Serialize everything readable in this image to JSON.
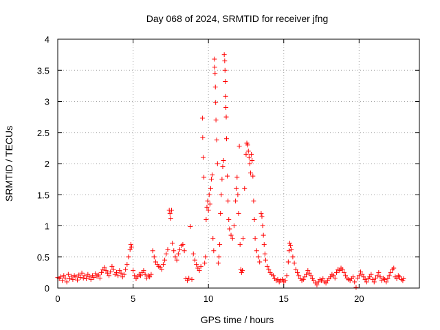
{
  "chart_data": {
    "type": "scatter",
    "title": "Day 068 of 2024, SRMTID for receiver jfng",
    "xlabel": "GPS time / hours",
    "ylabel": "SRMTID / TECUs",
    "xlim": [
      0,
      24
    ],
    "ylim": [
      0,
      4
    ],
    "x_ticks": [
      0,
      5,
      10,
      15,
      20
    ],
    "x_tick_labels": [
      "0",
      "5",
      "10",
      "15",
      "20"
    ],
    "y_ticks": [
      0,
      0.5,
      1,
      1.5,
      2,
      2.5,
      3,
      3.5,
      4
    ],
    "y_tick_labels": [
      "0",
      "0.5",
      "1",
      "1.5",
      "2",
      "2.5",
      "3",
      "3.5",
      "4"
    ],
    "grid": true,
    "marker": "+",
    "series": [
      {
        "name": "SRMTID",
        "color": "#ff0000",
        "points": [
          [
            0.0,
            0.17
          ],
          [
            0.1,
            0.15
          ],
          [
            0.2,
            0.18
          ],
          [
            0.3,
            0.12
          ],
          [
            0.4,
            0.2
          ],
          [
            0.5,
            0.16
          ],
          [
            0.6,
            0.1
          ],
          [
            0.7,
            0.22
          ],
          [
            0.8,
            0.15
          ],
          [
            0.9,
            0.19
          ],
          [
            1.0,
            0.14
          ],
          [
            1.1,
            0.2
          ],
          [
            1.2,
            0.18
          ],
          [
            1.3,
            0.13
          ],
          [
            1.4,
            0.21
          ],
          [
            1.5,
            0.17
          ],
          [
            1.6,
            0.24
          ],
          [
            1.7,
            0.16
          ],
          [
            1.8,
            0.2
          ],
          [
            1.9,
            0.15
          ],
          [
            2.0,
            0.22
          ],
          [
            2.1,
            0.18
          ],
          [
            2.2,
            0.14
          ],
          [
            2.3,
            0.2
          ],
          [
            2.4,
            0.17
          ],
          [
            2.5,
            0.23
          ],
          [
            2.6,
            0.19
          ],
          [
            2.7,
            0.21
          ],
          [
            2.8,
            0.16
          ],
          [
            2.9,
            0.25
          ],
          [
            3.0,
            0.3
          ],
          [
            3.1,
            0.33
          ],
          [
            3.2,
            0.28
          ],
          [
            3.3,
            0.24
          ],
          [
            3.4,
            0.2
          ],
          [
            3.5,
            0.26
          ],
          [
            3.6,
            0.35
          ],
          [
            3.7,
            0.3
          ],
          [
            3.8,
            0.22
          ],
          [
            3.9,
            0.25
          ],
          [
            4.0,
            0.2
          ],
          [
            4.1,
            0.28
          ],
          [
            4.2,
            0.24
          ],
          [
            4.3,
            0.18
          ],
          [
            4.4,
            0.22
          ],
          [
            4.5,
            0.3
          ],
          [
            4.6,
            0.38
          ],
          [
            4.7,
            0.5
          ],
          [
            4.8,
            0.62
          ],
          [
            4.85,
            0.7
          ],
          [
            4.9,
            0.66
          ],
          [
            5.0,
            0.28
          ],
          [
            5.1,
            0.2
          ],
          [
            5.2,
            0.15
          ],
          [
            5.3,
            0.18
          ],
          [
            5.4,
            0.22
          ],
          [
            5.5,
            0.2
          ],
          [
            5.6,
            0.25
          ],
          [
            5.7,
            0.28
          ],
          [
            5.8,
            0.22
          ],
          [
            5.9,
            0.16
          ],
          [
            6.0,
            0.2
          ],
          [
            6.1,
            0.18
          ],
          [
            6.2,
            0.22
          ],
          [
            6.3,
            0.6
          ],
          [
            6.4,
            0.5
          ],
          [
            6.5,
            0.42
          ],
          [
            6.6,
            0.38
          ],
          [
            6.7,
            0.35
          ],
          [
            6.8,
            0.33
          ],
          [
            6.9,
            0.3
          ],
          [
            7.0,
            0.38
          ],
          [
            7.1,
            0.45
          ],
          [
            7.2,
            0.55
          ],
          [
            7.3,
            0.62
          ],
          [
            7.4,
            1.25
          ],
          [
            7.45,
            1.2
          ],
          [
            7.5,
            1.12
          ],
          [
            7.55,
            1.25
          ],
          [
            7.6,
            0.72
          ],
          [
            7.7,
            0.6
          ],
          [
            7.8,
            0.5
          ],
          [
            7.9,
            0.45
          ],
          [
            8.0,
            0.55
          ],
          [
            8.1,
            0.62
          ],
          [
            8.2,
            0.68
          ],
          [
            8.3,
            0.7
          ],
          [
            8.4,
            0.6
          ],
          [
            8.5,
            0.15
          ],
          [
            8.6,
            0.12
          ],
          [
            8.7,
            0.16
          ],
          [
            8.8,
            0.99
          ],
          [
            8.9,
            0.14
          ],
          [
            9.0,
            0.55
          ],
          [
            9.1,
            0.45
          ],
          [
            9.2,
            0.38
          ],
          [
            9.3,
            0.32
          ],
          [
            9.4,
            0.28
          ],
          [
            9.5,
            0.35
          ],
          [
            9.6,
            2.73
          ],
          [
            9.62,
            2.42
          ],
          [
            9.65,
            2.1
          ],
          [
            9.7,
            1.78
          ],
          [
            9.75,
            0.4
          ],
          [
            9.8,
            0.5
          ],
          [
            9.85,
            1.1
          ],
          [
            9.9,
            1.3
          ],
          [
            9.95,
            1.4
          ],
          [
            10.0,
            1.25
          ],
          [
            10.05,
            1.5
          ],
          [
            10.1,
            1.35
          ],
          [
            10.15,
            1.6
          ],
          [
            10.2,
            1.75
          ],
          [
            10.25,
            1.82
          ],
          [
            10.3,
            0.8
          ],
          [
            10.35,
            0.6
          ],
          [
            10.4,
            3.68
          ],
          [
            10.42,
            3.55
          ],
          [
            10.44,
            3.45
          ],
          [
            10.46,
            3.23
          ],
          [
            10.48,
            2.98
          ],
          [
            10.5,
            2.7
          ],
          [
            10.55,
            2.38
          ],
          [
            10.6,
            2.0
          ],
          [
            10.65,
            0.4
          ],
          [
            10.7,
            0.5
          ],
          [
            10.75,
            0.7
          ],
          [
            10.8,
            1.2
          ],
          [
            10.85,
            1.5
          ],
          [
            10.9,
            1.75
          ],
          [
            10.95,
            1.95
          ],
          [
            11.0,
            2.05
          ],
          [
            11.05,
            3.75
          ],
          [
            11.08,
            3.65
          ],
          [
            11.1,
            3.5
          ],
          [
            11.12,
            3.32
          ],
          [
            11.14,
            3.08
          ],
          [
            11.16,
            2.9
          ],
          [
            11.18,
            2.75
          ],
          [
            11.2,
            2.4
          ],
          [
            11.25,
            1.8
          ],
          [
            11.3,
            1.4
          ],
          [
            11.35,
            1.1
          ],
          [
            11.4,
            0.95
          ],
          [
            11.5,
            0.85
          ],
          [
            11.6,
            0.8
          ],
          [
            11.7,
            1.0
          ],
          [
            11.8,
            1.4
          ],
          [
            11.85,
            1.6
          ],
          [
            11.9,
            1.78
          ],
          [
            11.95,
            1.5
          ],
          [
            12.0,
            1.2
          ],
          [
            12.05,
            2.28
          ],
          [
            12.1,
            0.7
          ],
          [
            12.15,
            0.3
          ],
          [
            12.2,
            0.25
          ],
          [
            12.25,
            0.28
          ],
          [
            12.3,
            0.8
          ],
          [
            12.4,
            1.6
          ],
          [
            12.5,
            2.15
          ],
          [
            12.55,
            2.33
          ],
          [
            12.6,
            2.3
          ],
          [
            12.65,
            2.2
          ],
          [
            12.7,
            2.1
          ],
          [
            12.75,
            2.0
          ],
          [
            12.8,
            1.85
          ],
          [
            12.85,
            2.15
          ],
          [
            12.9,
            2.05
          ],
          [
            12.95,
            1.8
          ],
          [
            13.0,
            1.4
          ],
          [
            13.05,
            1.1
          ],
          [
            13.1,
            0.8
          ],
          [
            13.2,
            0.6
          ],
          [
            13.3,
            0.5
          ],
          [
            13.4,
            0.42
          ],
          [
            13.5,
            1.2
          ],
          [
            13.55,
            1.15
          ],
          [
            13.6,
            1.0
          ],
          [
            13.65,
            0.85
          ],
          [
            13.7,
            0.7
          ],
          [
            13.75,
            0.55
          ],
          [
            13.8,
            0.45
          ],
          [
            13.9,
            0.35
          ],
          [
            14.0,
            0.3
          ],
          [
            14.1,
            0.25
          ],
          [
            14.2,
            0.22
          ],
          [
            14.3,
            0.2
          ],
          [
            14.4,
            0.15
          ],
          [
            14.5,
            0.12
          ],
          [
            14.6,
            0.14
          ],
          [
            14.7,
            0.1
          ],
          [
            14.8,
            0.12
          ],
          [
            14.9,
            0.14
          ],
          [
            15.0,
            0.1
          ],
          [
            15.1,
            0.12
          ],
          [
            15.2,
            0.2
          ],
          [
            15.3,
            0.42
          ],
          [
            15.35,
            0.6
          ],
          [
            15.4,
            0.72
          ],
          [
            15.45,
            0.68
          ],
          [
            15.5,
            0.62
          ],
          [
            15.6,
            0.5
          ],
          [
            15.7,
            0.4
          ],
          [
            15.8,
            0.3
          ],
          [
            15.9,
            0.25
          ],
          [
            16.0,
            0.2
          ],
          [
            16.1,
            0.15
          ],
          [
            16.2,
            0.12
          ],
          [
            16.3,
            0.14
          ],
          [
            16.4,
            0.18
          ],
          [
            16.5,
            0.22
          ],
          [
            16.6,
            0.28
          ],
          [
            16.7,
            0.24
          ],
          [
            16.8,
            0.2
          ],
          [
            16.9,
            0.15
          ],
          [
            17.0,
            0.12
          ],
          [
            17.1,
            0.08
          ],
          [
            17.2,
            0.05
          ],
          [
            17.3,
            0.1
          ],
          [
            17.4,
            0.14
          ],
          [
            17.5,
            0.12
          ],
          [
            17.6,
            0.15
          ],
          [
            17.7,
            0.1
          ],
          [
            17.8,
            0.08
          ],
          [
            17.9,
            0.12
          ],
          [
            18.0,
            0.15
          ],
          [
            18.1,
            0.18
          ],
          [
            18.2,
            0.22
          ],
          [
            18.3,
            0.2
          ],
          [
            18.4,
            0.16
          ],
          [
            18.5,
            0.25
          ],
          [
            18.6,
            0.3
          ],
          [
            18.7,
            0.28
          ],
          [
            18.8,
            0.32
          ],
          [
            18.9,
            0.3
          ],
          [
            19.0,
            0.25
          ],
          [
            19.1,
            0.2
          ],
          [
            19.2,
            0.16
          ],
          [
            19.3,
            0.14
          ],
          [
            19.4,
            0.12
          ],
          [
            19.5,
            0.15
          ],
          [
            19.6,
            0.18
          ],
          [
            19.7,
            0.1
          ],
          [
            19.8,
            0.01
          ],
          [
            19.9,
            0.16
          ],
          [
            20.0,
            0.2
          ],
          [
            20.1,
            0.26
          ],
          [
            20.2,
            0.22
          ],
          [
            20.3,
            0.18
          ],
          [
            20.4,
            0.14
          ],
          [
            20.5,
            0.1
          ],
          [
            20.6,
            0.15
          ],
          [
            20.7,
            0.18
          ],
          [
            20.8,
            0.22
          ],
          [
            20.9,
            0.14
          ],
          [
            21.0,
            0.1
          ],
          [
            21.1,
            0.16
          ],
          [
            21.2,
            0.2
          ],
          [
            21.3,
            0.25
          ],
          [
            21.4,
            0.18
          ],
          [
            21.5,
            0.12
          ],
          [
            21.6,
            0.16
          ],
          [
            21.7,
            0.14
          ],
          [
            21.8,
            0.1
          ],
          [
            21.9,
            0.15
          ],
          [
            22.0,
            0.2
          ],
          [
            22.1,
            0.25
          ],
          [
            22.2,
            0.3
          ],
          [
            22.3,
            0.32
          ],
          [
            22.4,
            0.18
          ],
          [
            22.5,
            0.15
          ],
          [
            22.6,
            0.2
          ],
          [
            22.7,
            0.18
          ],
          [
            22.8,
            0.14
          ],
          [
            22.9,
            0.12
          ],
          [
            22.95,
            0.15
          ]
        ]
      }
    ]
  }
}
